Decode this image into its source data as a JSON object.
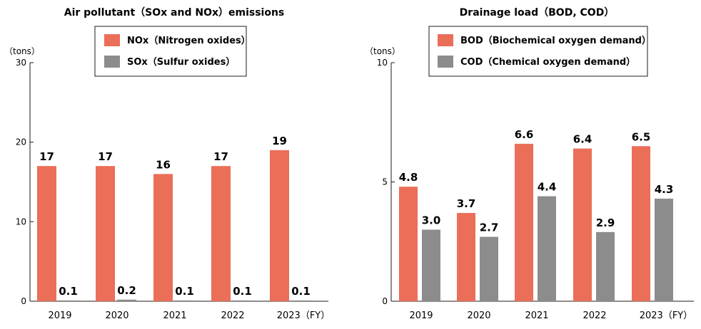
{
  "chart_data": [
    {
      "type": "bar",
      "title": "Air pollutant（SOx and NOx）emissions",
      "ylabel": "（tons）",
      "xlabel": "",
      "ylim": [
        0,
        30
      ],
      "yticks": [
        "0",
        "10",
        "20",
        "30"
      ],
      "categories": [
        "2019",
        "2020",
        "2021",
        "2022",
        "2023（FY）"
      ],
      "series": [
        {
          "name": "NOx（Nitrogen oxides）",
          "color": "#EB6E58",
          "values": [
            17,
            17,
            16,
            17,
            19
          ],
          "labels": [
            "17",
            "17",
            "16",
            "17",
            "19"
          ]
        },
        {
          "name": "SOx（Sulfur oxides）",
          "color": "#8C8C8C",
          "values": [
            0.1,
            0.2,
            0.1,
            0.1,
            0.1
          ],
          "labels": [
            "0.1",
            "0.2",
            "0.1",
            "0.1",
            "0.1"
          ]
        }
      ],
      "legend": "top-right",
      "grid": false
    },
    {
      "type": "bar",
      "title": "Drainage load（BOD, COD）",
      "ylabel": "（tons）",
      "xlabel": "",
      "ylim": [
        0,
        10
      ],
      "yticks": [
        "0",
        "5",
        "10"
      ],
      "categories": [
        "2019",
        "2020",
        "2021",
        "2022",
        "2023（FY）"
      ],
      "series": [
        {
          "name": "BOD（Biochemical oxygen demand）",
          "color": "#EB6E58",
          "values": [
            4.8,
            3.7,
            6.6,
            6.4,
            6.5
          ],
          "labels": [
            "4.8",
            "3.7",
            "6.6",
            "6.4",
            "6.5"
          ]
        },
        {
          "name": "COD（Chemical oxygen demand）",
          "color": "#8C8C8C",
          "values": [
            3.0,
            2.7,
            4.4,
            2.9,
            4.3
          ],
          "labels": [
            "3.0",
            "2.7",
            "4.4",
            "2.9",
            "4.3"
          ]
        }
      ],
      "legend": "top-right",
      "grid": false
    }
  ]
}
